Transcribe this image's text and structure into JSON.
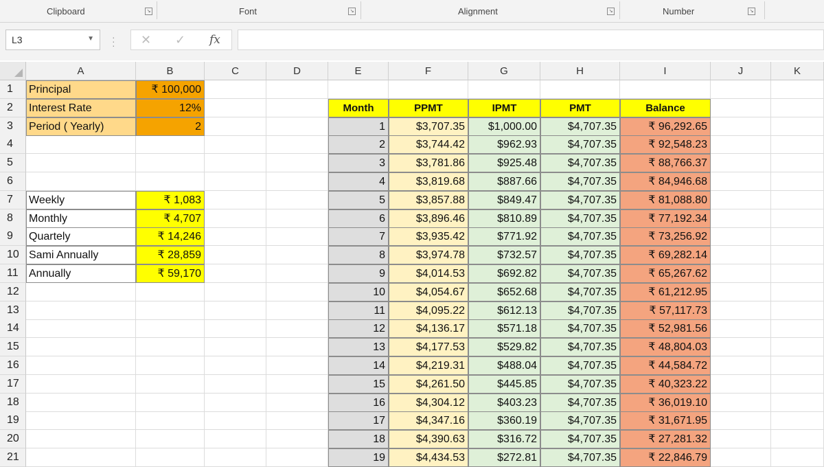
{
  "ribbon": {
    "groups": [
      {
        "label": "Clipboard"
      },
      {
        "label": "Font"
      },
      {
        "label": "Alignment"
      },
      {
        "label": "Number"
      }
    ]
  },
  "formula_bar": {
    "name_box": "L3",
    "cancel_glyph": "✕",
    "enter_glyph": "✓",
    "fx_glyph": "fx",
    "formula": ""
  },
  "sheet": {
    "columns": [
      "A",
      "B",
      "C",
      "D",
      "E",
      "F",
      "G",
      "H",
      "I",
      "J",
      "K"
    ],
    "rows": [
      "1",
      "2",
      "3",
      "4",
      "5",
      "6",
      "7",
      "8",
      "9",
      "10",
      "11",
      "12",
      "13",
      "14",
      "15",
      "16",
      "17",
      "18",
      "19",
      "20",
      "21"
    ],
    "inputs": [
      {
        "label": "Principal",
        "value": "₹ 100,000"
      },
      {
        "label": "Interest Rate",
        "value": "12%"
      },
      {
        "label": "Period ( Yearly)",
        "value": "2"
      }
    ],
    "payments": [
      {
        "label": "Weekly",
        "value": "₹ 1,083"
      },
      {
        "label": "Monthly",
        "value": "₹ 4,707"
      },
      {
        "label": "Quartely",
        "value": "₹ 14,246"
      },
      {
        "label": "Sami Annually",
        "value": "₹ 28,859"
      },
      {
        "label": "Annually",
        "value": "₹ 59,170"
      }
    ],
    "schedule_headers": [
      "Month",
      "PPMT",
      "IPMT",
      "PMT",
      "Balance"
    ],
    "schedule": [
      [
        "1",
        "$3,707.35",
        "$1,000.00",
        "$4,707.35",
        "₹ 96,292.65"
      ],
      [
        "2",
        "$3,744.42",
        "$962.93",
        "$4,707.35",
        "₹ 92,548.23"
      ],
      [
        "3",
        "$3,781.86",
        "$925.48",
        "$4,707.35",
        "₹ 88,766.37"
      ],
      [
        "4",
        "$3,819.68",
        "$887.66",
        "$4,707.35",
        "₹ 84,946.68"
      ],
      [
        "5",
        "$3,857.88",
        "$849.47",
        "$4,707.35",
        "₹ 81,088.80"
      ],
      [
        "6",
        "$3,896.46",
        "$810.89",
        "$4,707.35",
        "₹ 77,192.34"
      ],
      [
        "7",
        "$3,935.42",
        "$771.92",
        "$4,707.35",
        "₹ 73,256.92"
      ],
      [
        "8",
        "$3,974.78",
        "$732.57",
        "$4,707.35",
        "₹ 69,282.14"
      ],
      [
        "9",
        "$4,014.53",
        "$692.82",
        "$4,707.35",
        "₹ 65,267.62"
      ],
      [
        "10",
        "$4,054.67",
        "$652.68",
        "$4,707.35",
        "₹ 61,212.95"
      ],
      [
        "11",
        "$4,095.22",
        "$612.13",
        "$4,707.35",
        "₹ 57,117.73"
      ],
      [
        "12",
        "$4,136.17",
        "$571.18",
        "$4,707.35",
        "₹ 52,981.56"
      ],
      [
        "13",
        "$4,177.53",
        "$529.82",
        "$4,707.35",
        "₹ 48,804.03"
      ],
      [
        "14",
        "$4,219.31",
        "$488.04",
        "$4,707.35",
        "₹ 44,584.72"
      ],
      [
        "15",
        "$4,261.50",
        "$445.85",
        "$4,707.35",
        "₹ 40,323.22"
      ],
      [
        "16",
        "$4,304.12",
        "$403.23",
        "$4,707.35",
        "₹ 36,019.10"
      ],
      [
        "17",
        "$4,347.16",
        "$360.19",
        "$4,707.35",
        "₹ 31,671.95"
      ],
      [
        "18",
        "$4,390.63",
        "$316.72",
        "$4,707.35",
        "₹ 27,281.32"
      ],
      [
        "19",
        "$4,434.53",
        "$272.81",
        "$4,707.35",
        "₹ 22,846.79"
      ]
    ]
  },
  "colors": {
    "input_label_fill": "#ffd98a",
    "input_value_fill": "#f5a300",
    "payment_value_fill": "#ffff00",
    "header_fill": "#ffff00",
    "month_fill": "#dedede",
    "ppmt_fill": "#fff2c2",
    "ipmt_fill": "#dff0d8",
    "pmt_fill": "#dff0d8",
    "balance_fill": "#f4a47f"
  }
}
